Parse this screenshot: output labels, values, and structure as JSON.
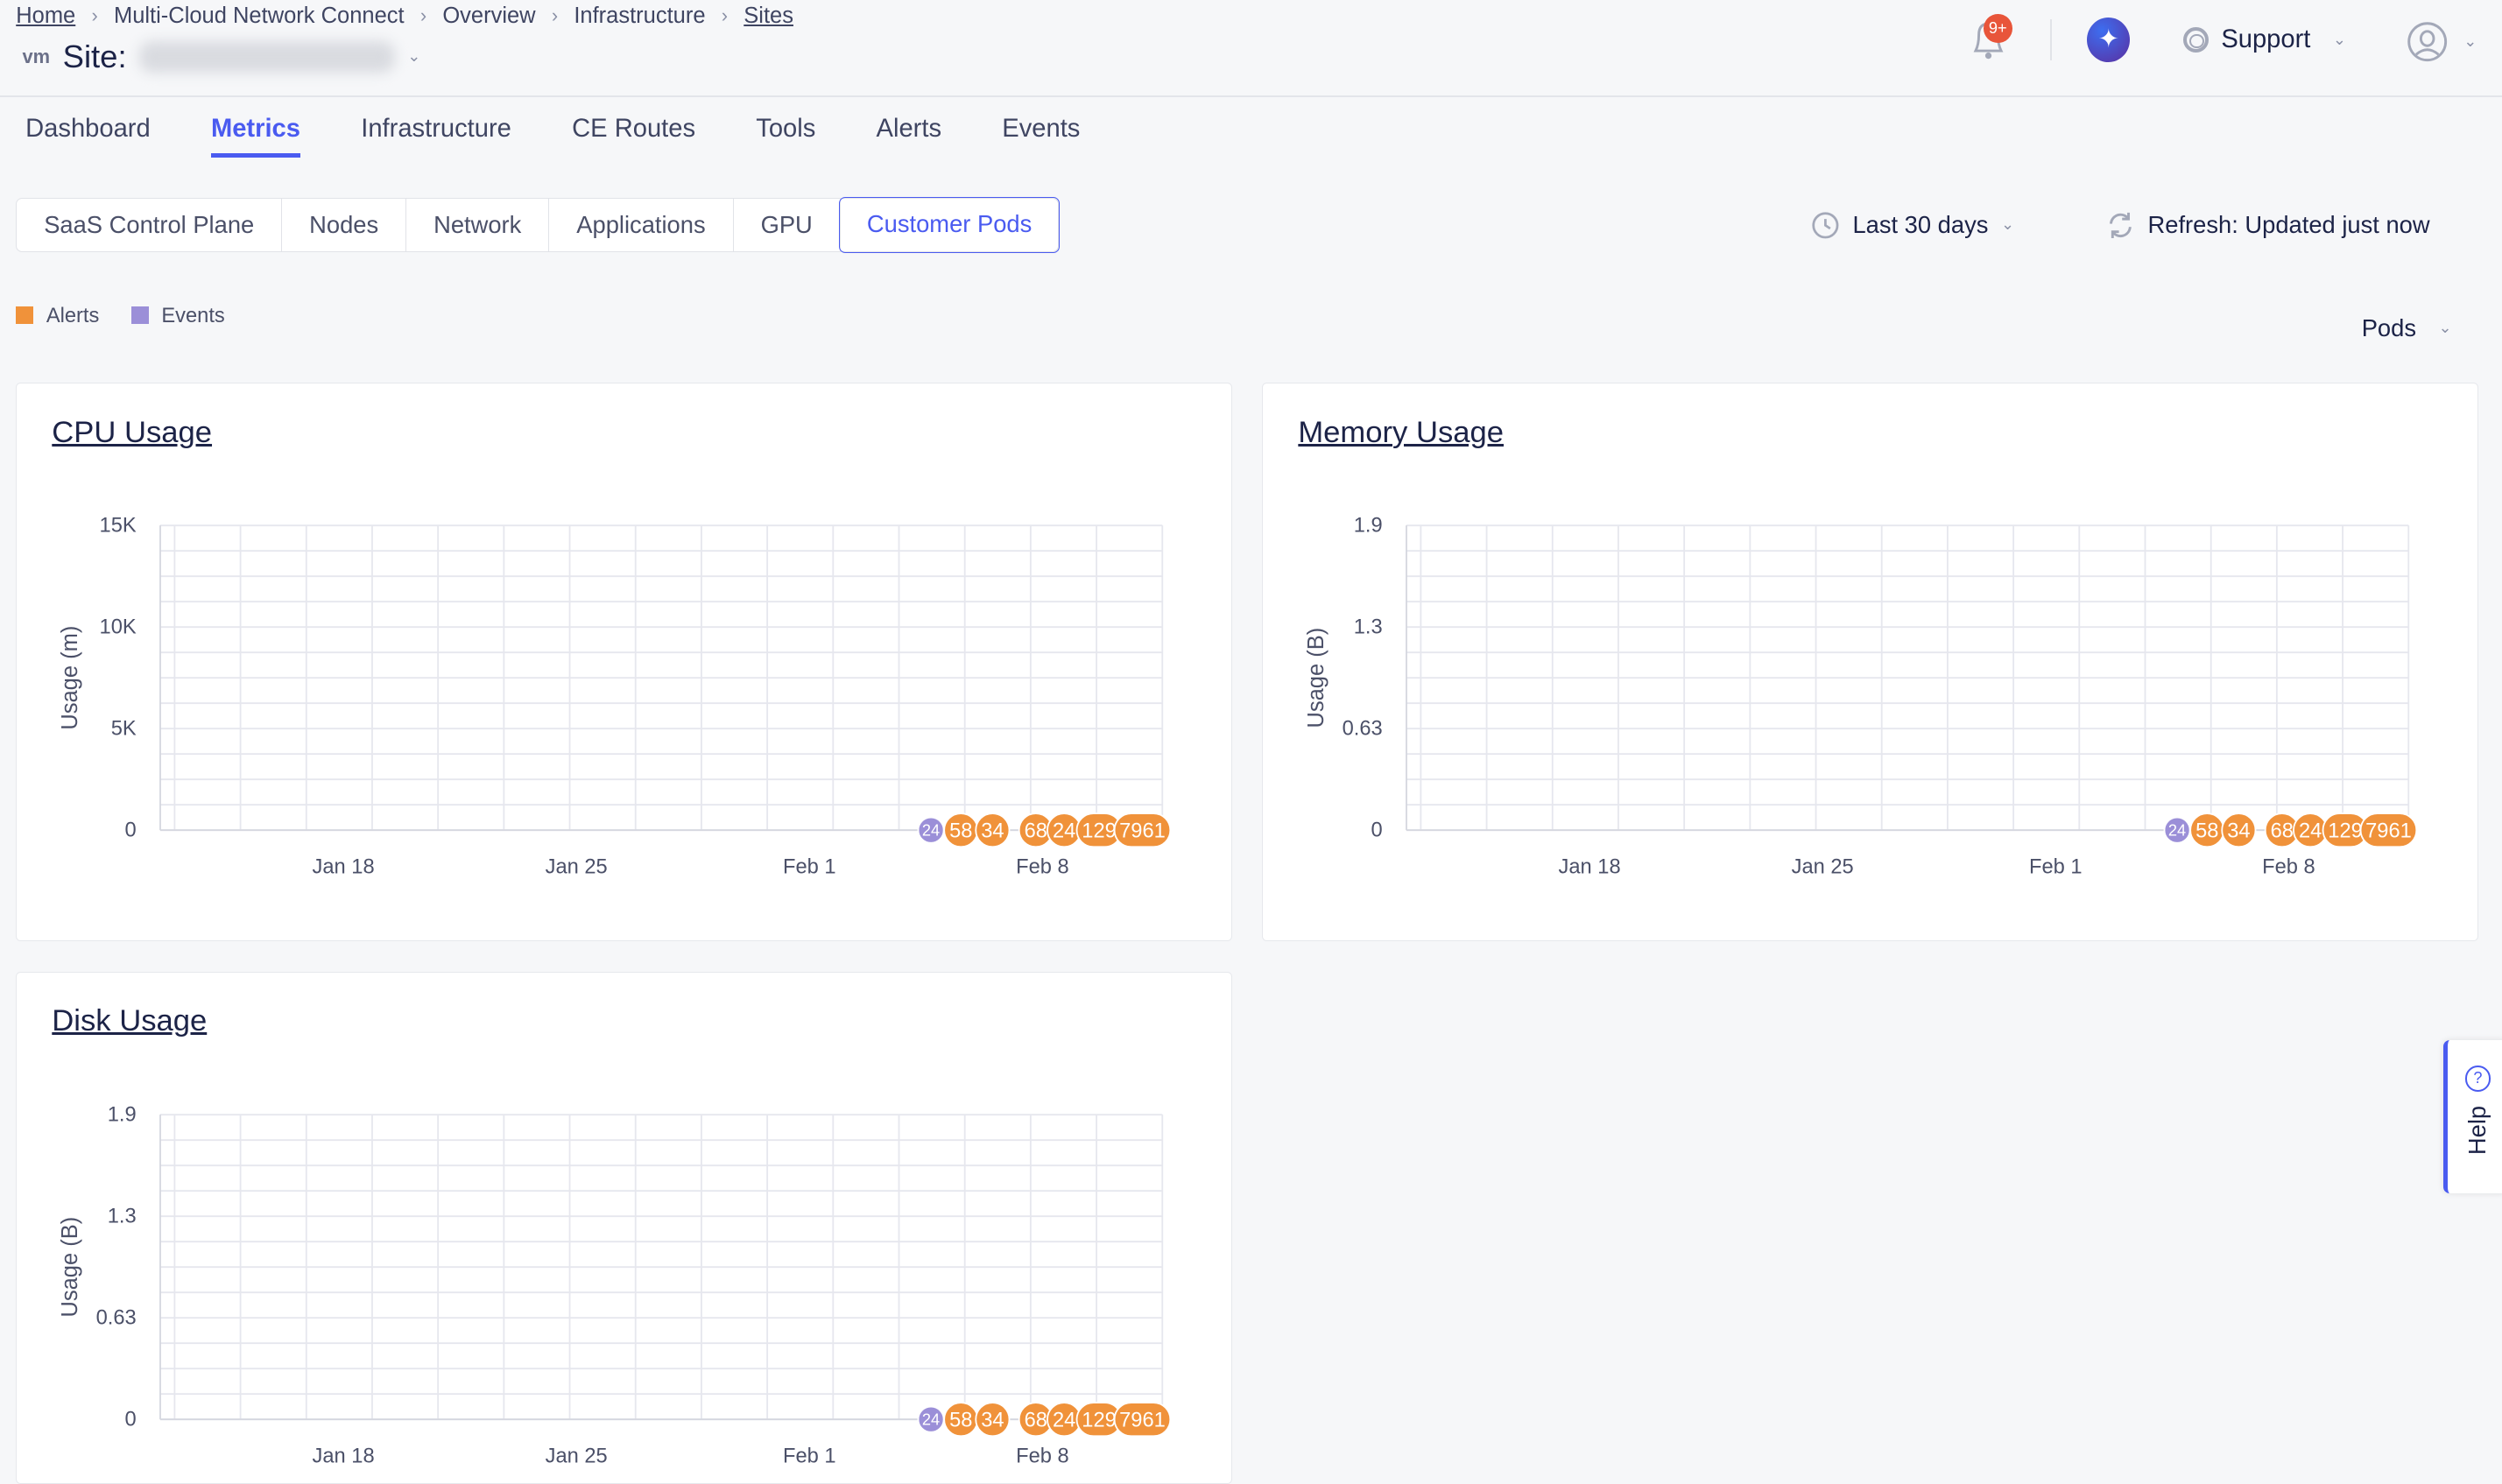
{
  "breadcrumb": [
    "Home",
    "Multi-Cloud Network Connect",
    "Overview",
    "Infrastructure",
    "Sites"
  ],
  "site": {
    "logo": "vm",
    "label": "Site:"
  },
  "header": {
    "notification_badge": "9+",
    "support_label": "Support"
  },
  "tabs": [
    "Dashboard",
    "Metrics",
    "Infrastructure",
    "CE Routes",
    "Tools",
    "Alerts",
    "Events"
  ],
  "active_tab": "Metrics",
  "subtabs": [
    "SaaS Control Plane",
    "Nodes",
    "Network",
    "Applications",
    "GPU",
    "Customer Pods"
  ],
  "active_subtab": "Customer Pods",
  "time_range": "Last 30 days",
  "refresh": "Refresh: Updated just now",
  "legend": [
    {
      "label": "Alerts",
      "color": "#f0923a"
    },
    {
      "label": "Events",
      "color": "#9b8fd8"
    }
  ],
  "group_select": "Pods",
  "help_label": "Help",
  "colors": {
    "accent": "#4a5bf0",
    "alert": "#f0923a",
    "event": "#9b8fd8",
    "badge": "#e8553a"
  },
  "chart_data": [
    {
      "type": "line",
      "title": "CPU Usage",
      "ylabel": "Usage (m)",
      "yticks": [
        "0",
        "5K",
        "10K",
        "15K"
      ],
      "ylim": [
        0,
        15000
      ],
      "xrange": [
        "Jan 12.5",
        "Feb 11.6"
      ],
      "xticks": [
        "Jan 18",
        "Jan 25",
        "Feb 1",
        "Feb 8"
      ],
      "grid": true,
      "series": [],
      "markers": [
        {
          "kind": "event",
          "label": "24",
          "date": "Feb 4.65"
        },
        {
          "kind": "alert",
          "label": "58",
          "date": "Feb 5.55"
        },
        {
          "kind": "alert",
          "label": "34",
          "date": "Feb 6.5"
        },
        {
          "kind": "alert",
          "label": "68",
          "date": "Feb 7.8"
        },
        {
          "kind": "alert",
          "label": "24",
          "date": "Feb 8.65"
        },
        {
          "kind": "alert",
          "label": "129",
          "date": "Feb 9.7"
        },
        {
          "kind": "alert",
          "label": "7961",
          "date": "Feb 11"
        }
      ]
    },
    {
      "type": "line",
      "title": "Memory Usage",
      "ylabel": "Usage (B)",
      "yticks": [
        "0",
        "0.63",
        "1.3",
        "1.9"
      ],
      "ylim": [
        0,
        1.9
      ],
      "xrange": [
        "Jan 12.5",
        "Feb 11.6"
      ],
      "xticks": [
        "Jan 18",
        "Jan 25",
        "Feb 1",
        "Feb 8"
      ],
      "grid": true,
      "series": [],
      "markers": [
        {
          "kind": "event",
          "label": "24",
          "date": "Feb 4.65"
        },
        {
          "kind": "alert",
          "label": "58",
          "date": "Feb 5.55"
        },
        {
          "kind": "alert",
          "label": "34",
          "date": "Feb 6.5"
        },
        {
          "kind": "alert",
          "label": "68",
          "date": "Feb 7.8"
        },
        {
          "kind": "alert",
          "label": "24",
          "date": "Feb 8.65"
        },
        {
          "kind": "alert",
          "label": "129",
          "date": "Feb 9.7"
        },
        {
          "kind": "alert",
          "label": "7961",
          "date": "Feb 11"
        }
      ]
    },
    {
      "type": "line",
      "title": "Disk Usage",
      "ylabel": "Usage (B)",
      "yticks": [
        "0",
        "0.63",
        "1.3",
        "1.9"
      ],
      "ylim": [
        0,
        1.9
      ],
      "xrange": [
        "Jan 12.5",
        "Feb 11.6"
      ],
      "xticks": [
        "Jan 18",
        "Jan 25",
        "Feb 1",
        "Feb 8"
      ],
      "grid": true,
      "series": [],
      "markers": [
        {
          "kind": "event",
          "label": "24",
          "date": "Feb 4.65"
        },
        {
          "kind": "alert",
          "label": "58",
          "date": "Feb 5.55"
        },
        {
          "kind": "alert",
          "label": "34",
          "date": "Feb 6.5"
        },
        {
          "kind": "alert",
          "label": "68",
          "date": "Feb 7.8"
        },
        {
          "kind": "alert",
          "label": "24",
          "date": "Feb 8.65"
        },
        {
          "kind": "alert",
          "label": "129",
          "date": "Feb 9.7"
        },
        {
          "kind": "alert",
          "label": "7961",
          "date": "Feb 11"
        }
      ]
    }
  ]
}
